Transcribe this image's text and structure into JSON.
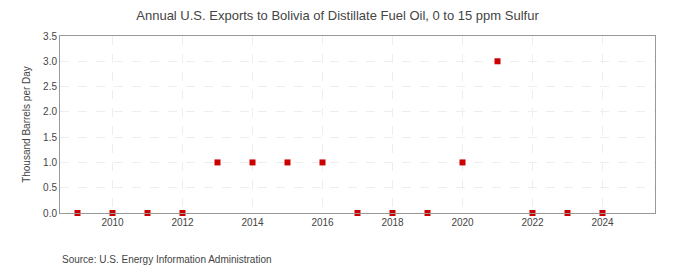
{
  "chart_data": {
    "type": "scatter",
    "title": "Annual U.S. Exports to Bolivia of Distillate Fuel Oil, 0 to 15 ppm Sulfur",
    "ylabel": "Thousand Barrels per Day",
    "annotations": [
      "Source: U.S. Energy Information Administration"
    ],
    "x": [
      2009,
      2010,
      2011,
      2012,
      2013,
      2014,
      2015,
      2016,
      2017,
      2018,
      2019,
      2020,
      2021,
      2022,
      2023,
      2024
    ],
    "values": [
      0.0,
      0.0,
      0.0,
      0.0,
      1.0,
      1.0,
      1.0,
      1.0,
      0.0,
      0.0,
      0.0,
      1.0,
      3.0,
      0.0,
      0.0,
      0.0
    ],
    "color": "#cc0000",
    "marker": "square",
    "xlim": [
      2008.5,
      2025.5
    ],
    "xticks": [
      2010,
      2012,
      2014,
      2016,
      2018,
      2020,
      2022,
      2024
    ],
    "ylim": [
      0,
      3.5
    ],
    "yticks": [
      {
        "value": 0,
        "label": "0.0"
      },
      0.5,
      {
        "value": 1,
        "label": "1.0"
      },
      1.5,
      {
        "value": 2,
        "label": "2.0"
      },
      2.5,
      {
        "value": 3,
        "label": "3.0"
      },
      3.5
    ],
    "grid": true
  }
}
